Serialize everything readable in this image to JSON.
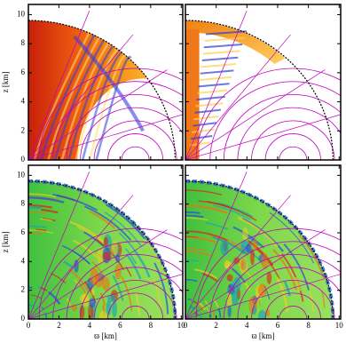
{
  "chart_data": [
    {
      "type": "field",
      "palette": "heat",
      "variant": "a",
      "xlim": [
        0,
        10.1
      ],
      "ylim": [
        0,
        10.7
      ],
      "xticks": [
        0,
        2,
        4,
        6,
        8,
        10
      ],
      "yticks": [
        0,
        2,
        4,
        6,
        8,
        10
      ],
      "xtick_labels": false,
      "ytick_labels": true,
      "ylabel": "z [km]"
    },
    {
      "type": "field",
      "palette": "heat",
      "variant": "b",
      "xlim": [
        0,
        10.1
      ],
      "ylim": [
        0,
        10.7
      ],
      "xticks": [
        0,
        2,
        4,
        6,
        8,
        10
      ],
      "yticks": [
        0,
        2,
        4,
        6,
        8,
        10
      ],
      "xtick_labels": false,
      "ytick_labels": false
    },
    {
      "type": "field",
      "palette": "spectral",
      "variant": "a",
      "xlim": [
        0,
        10.1
      ],
      "ylim": [
        0,
        10.7
      ],
      "xticks": [
        0,
        2,
        4,
        6,
        8,
        10
      ],
      "yticks": [
        0,
        2,
        4,
        6,
        8,
        10
      ],
      "xtick_labels": true,
      "ytick_labels": true,
      "ylabel": "z [km]",
      "xlabel": "ϖ  [km]"
    },
    {
      "type": "field",
      "palette": "spectral",
      "variant": "b",
      "xlim": [
        0,
        10.1
      ],
      "ylim": [
        0,
        10.7
      ],
      "xticks": [
        0,
        2,
        4,
        6,
        8,
        10
      ],
      "yticks": [
        0,
        2,
        4,
        6,
        8,
        10
      ],
      "xtick_labels": true,
      "ytick_labels": false,
      "xlabel": "ϖ  [km]"
    }
  ]
}
